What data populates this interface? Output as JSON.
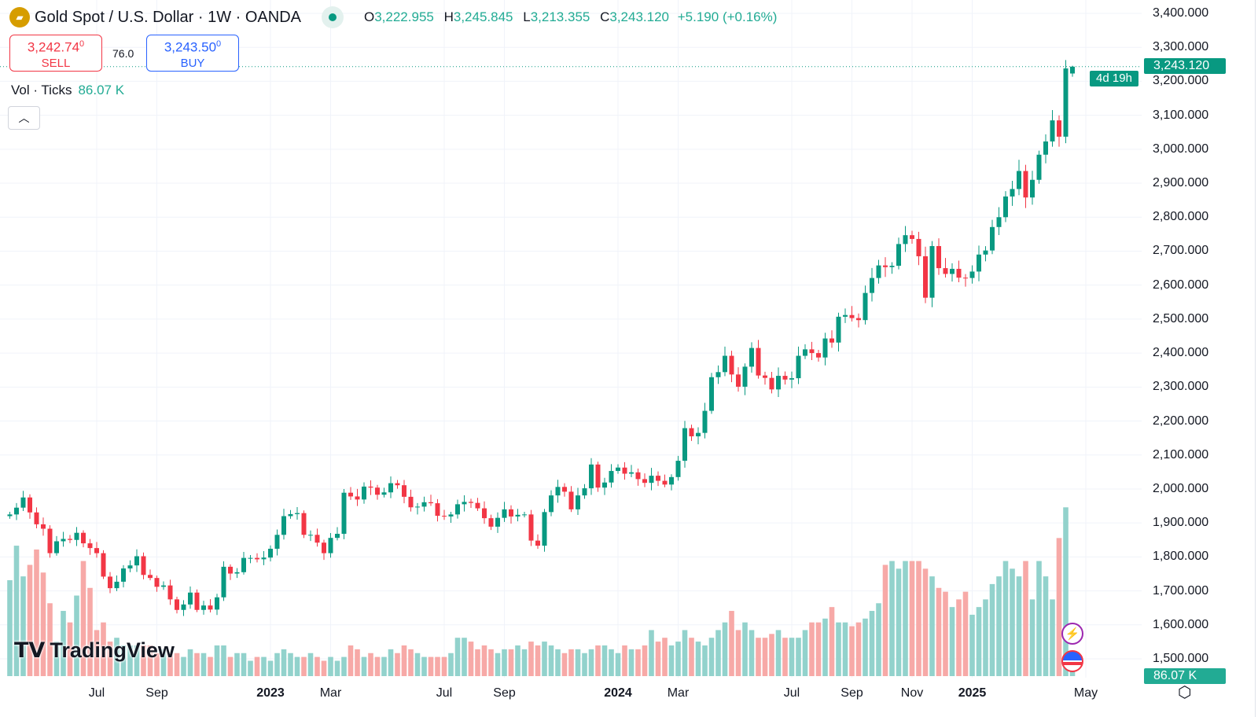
{
  "header": {
    "title": "Gold Spot / U.S. Dollar · 1W · OANDA",
    "o_key": "O",
    "o": "3,222.955",
    "h_key": "H",
    "h": "3,245.845",
    "l_key": "L",
    "l": "3,213.355",
    "c_key": "C",
    "c": "3,243.120",
    "change": "+5.190 (+0.16%)"
  },
  "trade": {
    "sell_price": "3,242.74",
    "sell_sup": "0",
    "sell_label": "SELL",
    "spread": "76.0",
    "buy_price": "3,243.50",
    "buy_sup": "0",
    "buy_label": "BUY"
  },
  "volume_legend": {
    "label": "Vol · Ticks",
    "value": "86.07 K"
  },
  "price_tag": {
    "price": "3,243.120",
    "countdown": "4d 19h"
  },
  "volume_tag": "86.07 K",
  "logo": "TradingView",
  "colors": {
    "up": "#089981",
    "down": "#f23645",
    "vol_up": "#92d2cc",
    "vol_down": "#f7a9a7"
  },
  "chart_data": {
    "type": "candlestick",
    "title": "Gold Spot / U.S. Dollar · 1W · OANDA",
    "ylim": [
      1500,
      3400
    ],
    "y_ticks": [
      "3,400.000",
      "3,300.000",
      "3,200.000",
      "3,100.000",
      "3,000.000",
      "2,900.000",
      "2,800.000",
      "2,700.000",
      "2,600.000",
      "2,500.000",
      "2,400.000",
      "2,300.000",
      "2,200.000",
      "2,100.000",
      "2,000.000",
      "1,900.000",
      "1,800.000",
      "1,700.000",
      "1,600.000",
      "1,500.000"
    ],
    "x_ticks": [
      {
        "label": "Jul",
        "week": 13,
        "bold": false
      },
      {
        "label": "Sep",
        "week": 22,
        "bold": false
      },
      {
        "label": "2023",
        "week": 39,
        "bold": true
      },
      {
        "label": "Mar",
        "week": 48,
        "bold": false
      },
      {
        "label": "Jul",
        "week": 65,
        "bold": false
      },
      {
        "label": "Sep",
        "week": 74,
        "bold": false
      },
      {
        "label": "2024",
        "week": 91,
        "bold": true
      },
      {
        "label": "Mar",
        "week": 100,
        "bold": false
      },
      {
        "label": "Jul",
        "week": 117,
        "bold": false
      },
      {
        "label": "Sep",
        "week": 126,
        "bold": false
      },
      {
        "label": "Nov",
        "week": 135,
        "bold": false
      },
      {
        "label": "2025",
        "week": 144,
        "bold": true
      },
      {
        "label": "May",
        "week": 161,
        "bold": false
      }
    ],
    "first_open": 1920,
    "last_ohlc": [
      3222.955,
      3245.845,
      3213.355,
      3243.12
    ],
    "closes": [
      1925,
      1945,
      1975,
      1931,
      1896,
      1883,
      1811,
      1846,
      1853,
      1850,
      1871,
      1840,
      1826,
      1811,
      1742,
      1708,
      1727,
      1766,
      1775,
      1802,
      1747,
      1738,
      1712,
      1716,
      1675,
      1644,
      1660,
      1695,
      1644,
      1657,
      1645,
      1681,
      1771,
      1751,
      1755,
      1797,
      1797,
      1793,
      1798,
      1824,
      1865,
      1920,
      1926,
      1929,
      1865,
      1865,
      1842,
      1811,
      1856,
      1868,
      1989,
      1978,
      1969,
      2007,
      2004,
      1983,
      1990,
      2017,
      2011,
      1977,
      1946,
      1948,
      1961,
      1958,
      1921,
      1919,
      1925,
      1955,
      1962,
      1959,
      1943,
      1914,
      1889,
      1915,
      1940,
      1919,
      1924,
      1925,
      1848,
      1833,
      1932,
      1981,
      2006,
      1992,
      1940,
      1981,
      2002,
      2072,
      2004,
      2019,
      2053,
      2063,
      2045,
      2049,
      2029,
      2018,
      2039,
      2024,
      2013,
      2035,
      2083,
      2179,
      2155,
      2165,
      2230,
      2329,
      2344,
      2392,
      2337,
      2301,
      2360,
      2415,
      2334,
      2327,
      2293,
      2333,
      2322,
      2326,
      2392,
      2411,
      2400,
      2387,
      2443,
      2431,
      2507,
      2512,
      2503,
      2497,
      2577,
      2621,
      2658,
      2653,
      2657,
      2721,
      2747,
      2736,
      2685,
      2563,
      2715,
      2650,
      2633,
      2648,
      2622,
      2621,
      2640,
      2690,
      2702,
      2771,
      2800,
      2861,
      2883,
      2936,
      2858,
      2910,
      2984,
      3023,
      3085,
      3037,
      3237.93,
      3243.12
    ],
    "volume_k": [
      875,
      1190,
      910,
      1015,
      1155,
      945,
      665,
      315,
      595,
      490,
      735,
      1050,
      805,
      420,
      490,
      315,
      350,
      280,
      280,
      280,
      280,
      280,
      210,
      245,
      210,
      210,
      175,
      245,
      210,
      210,
      175,
      280,
      280,
      175,
      210,
      210,
      140,
      175,
      175,
      140,
      210,
      245,
      210,
      175,
      175,
      210,
      175,
      140,
      175,
      140,
      175,
      280,
      245,
      175,
      210,
      175,
      175,
      245,
      210,
      280,
      245,
      210,
      175,
      175,
      175,
      175,
      210,
      350,
      350,
      315,
      245,
      280,
      245,
      210,
      245,
      245,
      280,
      245,
      315,
      280,
      315,
      280,
      245,
      210,
      245,
      245,
      210,
      245,
      280,
      280,
      245,
      210,
      280,
      245,
      245,
      280,
      420,
      315,
      350,
      280,
      315,
      420,
      350,
      315,
      280,
      350,
      420,
      490,
      595,
      420,
      490,
      420,
      350,
      350,
      385,
      420,
      350,
      350,
      350,
      420,
      490,
      490,
      525,
      630,
      490,
      490,
      455,
      490,
      525,
      595,
      665,
      1015,
      1050,
      980,
      1050,
      1050,
      1050,
      980,
      910,
      805,
      770,
      630,
      700,
      770,
      560,
      630,
      700,
      840,
      910,
      1050,
      980,
      910,
      1050,
      700,
      1050,
      910,
      700,
      1260,
      1540,
      86.07
    ]
  }
}
